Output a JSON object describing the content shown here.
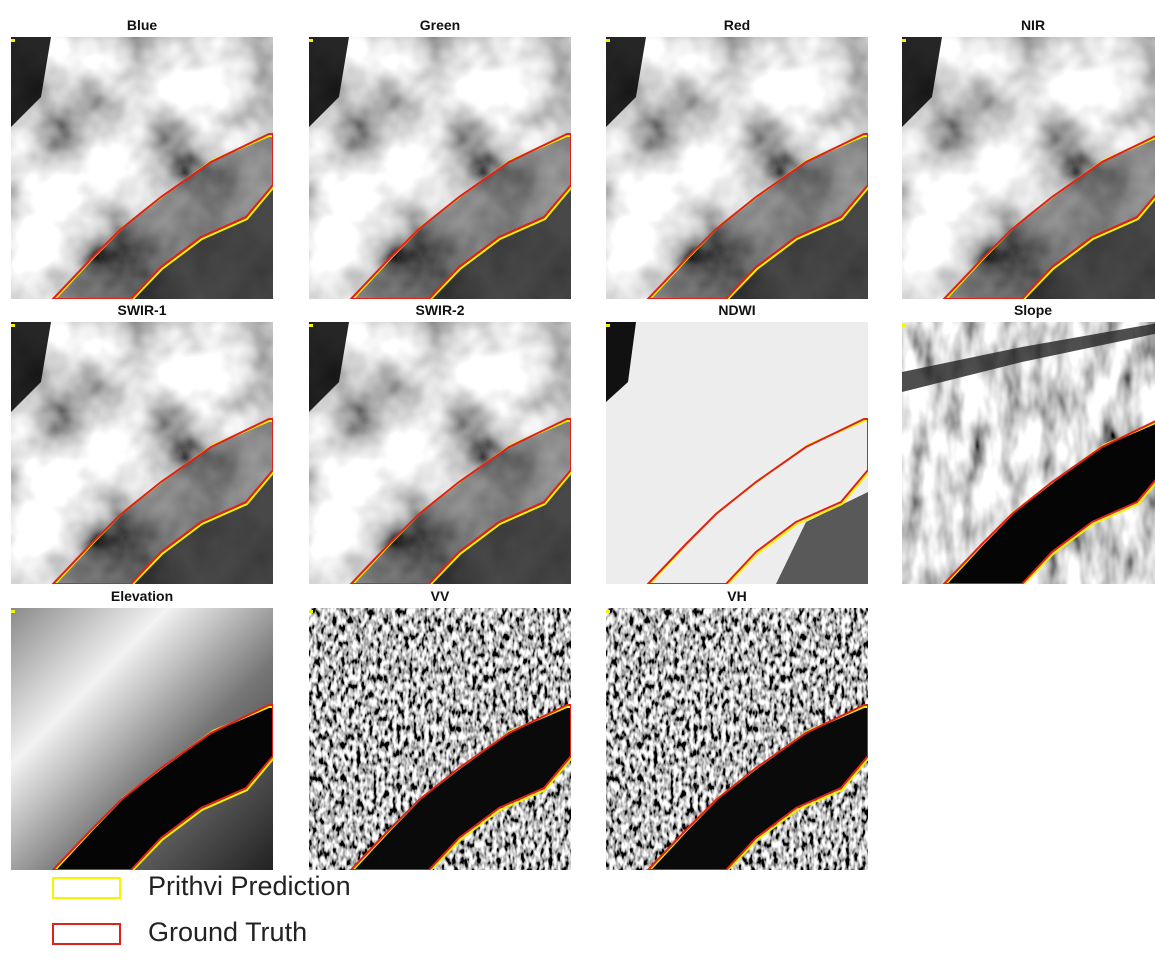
{
  "panels": [
    {
      "title": "Blue"
    },
    {
      "title": "Green"
    },
    {
      "title": "Red"
    },
    {
      "title": "NIR"
    },
    {
      "title": "SWIR-1"
    },
    {
      "title": "SWIR-2"
    },
    {
      "title": "NDWI"
    },
    {
      "title": "Slope"
    },
    {
      "title": "Elevation"
    },
    {
      "title": "VV"
    },
    {
      "title": "VH"
    }
  ],
  "legend": [
    {
      "label": "Prithvi Prediction",
      "color": "#f5f500"
    },
    {
      "label": "Ground Truth",
      "color": "#e0201a"
    }
  ]
}
